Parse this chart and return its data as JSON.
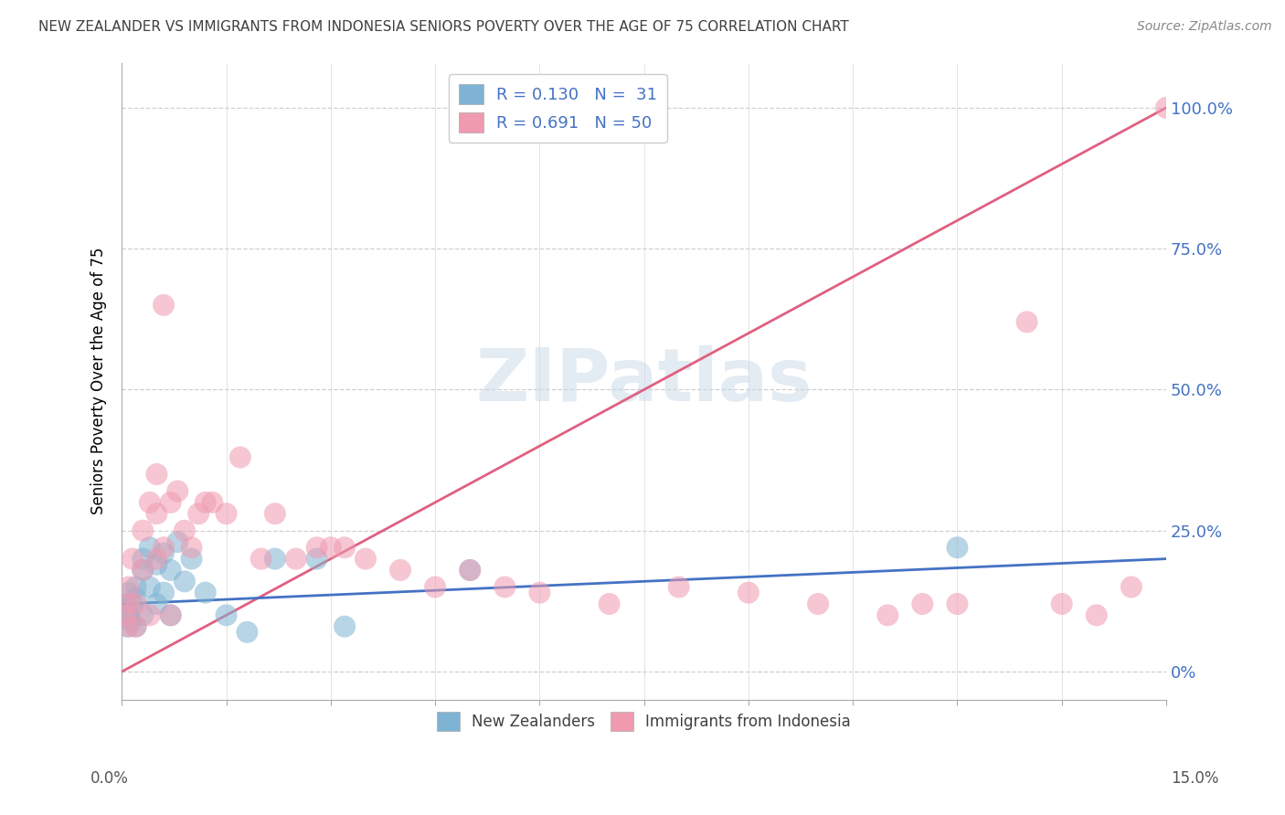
{
  "title": "NEW ZEALANDER VS IMMIGRANTS FROM INDONESIA SENIORS POVERTY OVER THE AGE OF 75 CORRELATION CHART",
  "source": "Source: ZipAtlas.com",
  "ylabel": "Seniors Poverty Over the Age of 75",
  "ytick_labels": [
    "0%",
    "25.0%",
    "50.0%",
    "75.0%",
    "100.0%"
  ],
  "ytick_values": [
    0.0,
    0.25,
    0.5,
    0.75,
    1.0
  ],
  "xmin": 0.0,
  "xmax": 0.15,
  "ymin": -0.05,
  "ymax": 1.08,
  "watermark_text": "ZIPatlas",
  "blue_color": "#7fb3d3",
  "pink_color": "#f09ab0",
  "blue_line_color": "#4472c4",
  "pink_line_color": "#e06080",
  "background_color": "#ffffff",
  "grid_color": "#d0d0d0",
  "right_label_color": "#4472c4",
  "title_color": "#404040",
  "source_color": "#888888",
  "legend_text_color": "#4472c4",
  "nz_x": [
    0.0005,
    0.0008,
    0.001,
    0.001,
    0.0012,
    0.0015,
    0.002,
    0.002,
    0.002,
    0.003,
    0.003,
    0.003,
    0.004,
    0.004,
    0.005,
    0.005,
    0.006,
    0.006,
    0.007,
    0.007,
    0.008,
    0.009,
    0.01,
    0.012,
    0.015,
    0.018,
    0.022,
    0.028,
    0.032,
    0.05,
    0.12
  ],
  "nz_y": [
    0.12,
    0.08,
    0.1,
    0.14,
    0.09,
    0.12,
    0.08,
    0.13,
    0.15,
    0.1,
    0.18,
    0.2,
    0.15,
    0.22,
    0.12,
    0.19,
    0.14,
    0.21,
    0.1,
    0.18,
    0.23,
    0.16,
    0.2,
    0.14,
    0.1,
    0.07,
    0.2,
    0.2,
    0.08,
    0.18,
    0.22
  ],
  "id_x": [
    0.0005,
    0.001,
    0.001,
    0.001,
    0.0015,
    0.002,
    0.002,
    0.003,
    0.003,
    0.004,
    0.004,
    0.005,
    0.005,
    0.005,
    0.006,
    0.006,
    0.007,
    0.007,
    0.008,
    0.009,
    0.01,
    0.011,
    0.012,
    0.013,
    0.015,
    0.017,
    0.02,
    0.022,
    0.025,
    0.028,
    0.03,
    0.032,
    0.035,
    0.04,
    0.045,
    0.05,
    0.055,
    0.06,
    0.07,
    0.08,
    0.09,
    0.1,
    0.11,
    0.115,
    0.12,
    0.13,
    0.135,
    0.14,
    0.145,
    0.15
  ],
  "id_y": [
    0.1,
    0.12,
    0.08,
    0.15,
    0.2,
    0.08,
    0.12,
    0.25,
    0.18,
    0.3,
    0.1,
    0.35,
    0.28,
    0.2,
    0.65,
    0.22,
    0.3,
    0.1,
    0.32,
    0.25,
    0.22,
    0.28,
    0.3,
    0.3,
    0.28,
    0.38,
    0.2,
    0.28,
    0.2,
    0.22,
    0.22,
    0.22,
    0.2,
    0.18,
    0.15,
    0.18,
    0.15,
    0.14,
    0.12,
    0.15,
    0.14,
    0.12,
    0.1,
    0.12,
    0.12,
    0.62,
    0.12,
    0.1,
    0.15,
    1.0
  ]
}
